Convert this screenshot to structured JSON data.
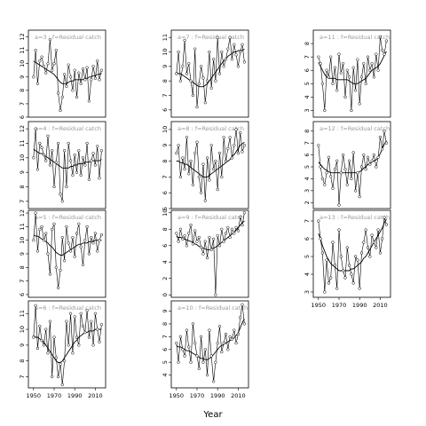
{
  "chart_data": {
    "type": "line",
    "xlabel": "Year",
    "x": [
      1950,
      1952,
      1954,
      1956,
      1958,
      1960,
      1962,
      1964,
      1966,
      1968,
      1970,
      1972,
      1974,
      1976,
      1978,
      1980,
      1982,
      1984,
      1986,
      1988,
      1990,
      1992,
      1994,
      1996,
      1998,
      2000,
      2002,
      2004,
      2006,
      2008,
      2010,
      2012,
      2014,
      2016
    ],
    "xticks": [
      1950,
      1970,
      1990,
      2010
    ],
    "xlim": [
      1945,
      2020
    ],
    "panels": [
      {
        "strip": "a=3 : f=Residual catch",
        "ylim": [
          6,
          12.5
        ],
        "yticks": [
          6,
          7,
          8,
          9,
          10,
          11,
          12
        ],
        "values": [
          9.0,
          11.0,
          8.5,
          10.2,
          10.5,
          9.8,
          9.3,
          10.0,
          11.8,
          9.5,
          10.0,
          11.0,
          7.8,
          6.5,
          7.5,
          9.2,
          8.3,
          9.9,
          9.0,
          8.0,
          9.5,
          7.5,
          9.3,
          8.5,
          9.6,
          8.8,
          9.7,
          7.2,
          8.8,
          9.8,
          8.9,
          10.2,
          8.8,
          9.5
        ],
        "smooth": [
          10.2,
          10.1,
          10.0,
          9.9,
          9.8,
          9.7,
          9.6,
          9.5,
          9.4,
          9.3,
          9.2,
          9.0,
          8.8,
          8.6,
          8.5,
          8.5,
          8.5,
          8.6,
          8.7,
          8.7,
          8.8,
          8.8,
          8.8,
          8.8,
          8.8,
          8.9,
          8.9,
          9.0,
          9.0,
          9.1,
          9.1,
          9.2,
          9.2,
          9.3
        ]
      },
      {
        "strip": "a=4 : f=Residual catch",
        "ylim": [
          6.5,
          12.5
        ],
        "yticks": [
          7,
          8,
          9,
          10,
          11,
          12
        ],
        "values": [
          10.0,
          12.0,
          9.2,
          11.0,
          10.7,
          10.2,
          9.8,
          11.5,
          9.5,
          10.5,
          8.0,
          9.7,
          11.0,
          7.5,
          7.0,
          10.5,
          8.0,
          11.0,
          9.8,
          8.8,
          10.2,
          9.0,
          10.5,
          8.8,
          10.0,
          9.5,
          11.0,
          8.5,
          9.8,
          10.3,
          9.5,
          10.8,
          8.6,
          10.5
        ],
        "smooth": [
          10.6,
          10.5,
          10.4,
          10.3,
          10.3,
          10.2,
          10.1,
          10.0,
          9.9,
          9.8,
          9.7,
          9.6,
          9.5,
          9.4,
          9.3,
          9.3,
          9.3,
          9.3,
          9.4,
          9.4,
          9.5,
          9.5,
          9.6,
          9.6,
          9.6,
          9.7,
          9.7,
          9.7,
          9.8,
          9.8,
          9.8,
          9.8,
          9.8,
          9.9
        ]
      },
      {
        "strip": "a=5 : f=Residual catch",
        "ylim": [
          5.8,
          12.2
        ],
        "yticks": [
          6,
          7,
          8,
          9,
          10,
          11,
          12
        ],
        "values": [
          10.0,
          12.0,
          9.2,
          10.8,
          11.0,
          10.0,
          10.5,
          9.0,
          7.5,
          10.8,
          11.2,
          8.0,
          6.5,
          7.8,
          10.2,
          8.5,
          11.0,
          9.8,
          9.2,
          10.2,
          8.8,
          10.5,
          11.2,
          9.5,
          8.2,
          10.0,
          11.0,
          9.0,
          10.2,
          9.8,
          10.5,
          9.2,
          10.0,
          10.4
        ],
        "smooth": [
          10.4,
          10.3,
          10.3,
          10.2,
          10.1,
          10.0,
          9.9,
          9.8,
          9.6,
          9.5,
          9.3,
          9.1,
          9.0,
          8.9,
          8.9,
          9.0,
          9.1,
          9.2,
          9.3,
          9.4,
          9.5,
          9.6,
          9.7,
          9.7,
          9.8,
          9.8,
          9.8,
          9.9,
          9.9,
          9.9,
          10.0,
          10.0,
          10.0,
          10.0
        ]
      },
      {
        "strip": "a=6 : f=Residual catch",
        "ylim": [
          6.3,
          11.8
        ],
        "yticks": [
          7,
          8,
          9,
          10,
          11
        ],
        "values": [
          9.5,
          11.5,
          8.8,
          10.2,
          9.3,
          9.0,
          10.0,
          8.5,
          10.5,
          7.0,
          9.5,
          8.2,
          7.0,
          7.8,
          6.5,
          8.0,
          10.5,
          9.0,
          11.0,
          8.5,
          10.8,
          9.5,
          9.0,
          11.0,
          10.2,
          9.8,
          11.2,
          9.5,
          10.5,
          9.0,
          11.0,
          10.0,
          9.2,
          10.3
        ],
        "smooth": [
          9.6,
          9.5,
          9.5,
          9.4,
          9.3,
          9.2,
          9.0,
          8.8,
          8.6,
          8.4,
          8.2,
          8.0,
          7.9,
          7.9,
          8.0,
          8.2,
          8.4,
          8.6,
          8.8,
          9.0,
          9.2,
          9.3,
          9.5,
          9.6,
          9.7,
          9.8,
          9.8,
          9.9,
          9.9,
          9.9,
          10.0,
          10.0,
          10.0,
          10.0
        ]
      },
      {
        "strip": "a=7 : f=Residual catch",
        "ylim": [
          5.5,
          11.5
        ],
        "yticks": [
          6,
          7,
          8,
          9,
          10,
          11
        ],
        "values": [
          8.5,
          10.0,
          8.0,
          9.0,
          10.8,
          8.5,
          9.2,
          8.0,
          7.0,
          10.2,
          6.2,
          7.8,
          9.0,
          8.2,
          6.5,
          8.0,
          10.0,
          7.5,
          9.5,
          8.0,
          11.0,
          8.5,
          10.0,
          9.0,
          9.5,
          10.2,
          11.0,
          9.5,
          10.5,
          9.8,
          9.0,
          10.0,
          10.5,
          9.3
        ],
        "smooth": [
          8.6,
          8.5,
          8.5,
          8.4,
          8.3,
          8.2,
          8.1,
          8.0,
          7.9,
          7.8,
          7.7,
          7.6,
          7.6,
          7.6,
          7.7,
          7.8,
          8.0,
          8.2,
          8.4,
          8.6,
          8.8,
          9.0,
          9.2,
          9.4,
          9.5,
          9.7,
          9.8,
          9.9,
          10.0,
          10.0,
          10.1,
          10.1,
          10.1,
          10.2
        ]
      },
      {
        "strip": "a=8 : f=Residual catch",
        "ylim": [
          5,
          10.5
        ],
        "yticks": [
          5,
          6,
          7,
          8,
          9,
          10
        ],
        "values": [
          8.5,
          9.0,
          7.0,
          8.2,
          7.5,
          9.5,
          7.2,
          8.0,
          6.5,
          8.5,
          9.2,
          7.0,
          6.0,
          7.8,
          5.5,
          8.2,
          6.8,
          9.0,
          7.5,
          8.0,
          6.2,
          8.5,
          7.0,
          9.5,
          8.0,
          8.8,
          9.5,
          8.2,
          9.0,
          10.0,
          8.5,
          9.8,
          8.6,
          9.0
        ],
        "smooth": [
          8.0,
          8.0,
          7.9,
          7.9,
          7.8,
          7.8,
          7.7,
          7.6,
          7.5,
          7.4,
          7.3,
          7.2,
          7.1,
          7.0,
          7.0,
          7.0,
          7.1,
          7.2,
          7.3,
          7.4,
          7.5,
          7.6,
          7.7,
          7.8,
          7.9,
          8.0,
          8.1,
          8.3,
          8.4,
          8.6,
          8.8,
          9.0,
          9.1,
          9.2
        ]
      },
      {
        "strip": "a=9 : f=Residual catch",
        "ylim": [
          -0.3,
          10.3
        ],
        "yticks": [
          0,
          2,
          4,
          6,
          8,
          10
        ],
        "values": [
          7.5,
          6.5,
          8.0,
          6.8,
          7.2,
          6.0,
          7.5,
          8.5,
          6.2,
          7.8,
          6.5,
          7.0,
          5.8,
          5.0,
          6.5,
          4.5,
          7.0,
          5.5,
          6.8,
          0.0,
          7.2,
          6.0,
          8.0,
          6.5,
          7.5,
          8.2,
          7.0,
          8.0,
          7.5,
          8.2,
          7.8,
          9.5,
          8.5,
          10.0
        ],
        "smooth": [
          7.1,
          7.0,
          7.0,
          6.9,
          6.8,
          6.7,
          6.6,
          6.5,
          6.4,
          6.2,
          6.1,
          5.9,
          5.8,
          5.7,
          5.6,
          5.5,
          5.5,
          5.6,
          5.7,
          5.8,
          6.0,
          6.2,
          6.4,
          6.6,
          6.8,
          7.0,
          7.2,
          7.4,
          7.6,
          7.9,
          8.2,
          8.5,
          8.8,
          9.0
        ]
      },
      {
        "strip": "a=10 : f=Residual catch",
        "ylim": [
          3,
          9.8
        ],
        "yticks": [
          4,
          5,
          6,
          7,
          8,
          9
        ],
        "values": [
          6.5,
          5.0,
          7.0,
          6.0,
          5.5,
          7.5,
          6.2,
          5.0,
          8.0,
          6.5,
          5.5,
          4.5,
          7.0,
          5.0,
          6.0,
          4.0,
          7.5,
          5.5,
          3.5,
          5.0,
          6.5,
          7.8,
          5.8,
          6.5,
          7.2,
          6.0,
          7.0,
          6.8,
          7.5,
          6.5,
          7.2,
          8.5,
          9.5,
          8.0
        ],
        "smooth": [
          6.3,
          6.2,
          6.2,
          6.1,
          6.0,
          5.9,
          5.9,
          5.8,
          5.7,
          5.6,
          5.5,
          5.4,
          5.3,
          5.3,
          5.2,
          5.2,
          5.3,
          5.4,
          5.6,
          5.8,
          6.0,
          6.2,
          6.3,
          6.4,
          6.5,
          6.6,
          6.7,
          6.8,
          6.9,
          7.1,
          7.3,
          7.7,
          8.1,
          8.4
        ]
      },
      {
        "strip": "a=11 : f=Residual catch",
        "ylim": [
          2.5,
          9
        ],
        "yticks": [
          3,
          4,
          5,
          6,
          7,
          8
        ],
        "values": [
          7.0,
          6.5,
          5.0,
          3.0,
          6.0,
          5.5,
          7.0,
          5.0,
          6.2,
          4.5,
          7.2,
          5.8,
          6.5,
          4.0,
          6.0,
          5.5,
          3.0,
          6.2,
          4.5,
          6.8,
          3.5,
          5.5,
          6.5,
          5.0,
          7.0,
          6.0,
          6.5,
          5.5,
          7.2,
          6.0,
          8.5,
          7.5,
          7.2,
          8.2
        ],
        "smooth": [
          6.6,
          6.3,
          6.0,
          5.7,
          5.5,
          5.4,
          5.4,
          5.4,
          5.4,
          5.3,
          5.3,
          5.3,
          5.3,
          5.3,
          5.3,
          5.2,
          5.1,
          5.0,
          5.0,
          5.0,
          5.1,
          5.2,
          5.3,
          5.4,
          5.6,
          5.8,
          6.0,
          6.1,
          6.2,
          6.3,
          6.5,
          6.8,
          7.1,
          7.4
        ]
      },
      {
        "strip": "a=12 : f=Residual catch",
        "ylim": [
          1.5,
          8.8
        ],
        "yticks": [
          2,
          3,
          4,
          5,
          6,
          7,
          8
        ],
        "values": [
          6.8,
          5.0,
          4.0,
          3.5,
          4.5,
          5.8,
          4.2,
          3.2,
          4.8,
          5.5,
          1.8,
          4.5,
          6.0,
          4.8,
          3.5,
          5.5,
          4.0,
          6.2,
          3.0,
          4.5,
          2.5,
          5.0,
          6.0,
          4.8,
          5.8,
          5.2,
          5.5,
          6.0,
          5.0,
          5.8,
          7.5,
          6.5,
          8.0,
          7.0
        ],
        "smooth": [
          5.4,
          5.2,
          5.0,
          4.8,
          4.7,
          4.6,
          4.5,
          4.5,
          4.5,
          4.5,
          4.5,
          4.5,
          4.5,
          4.5,
          4.5,
          4.5,
          4.5,
          4.5,
          4.5,
          4.5,
          4.6,
          4.7,
          4.9,
          5.0,
          5.2,
          5.3,
          5.4,
          5.5,
          5.6,
          5.8,
          6.1,
          6.5,
          6.9,
          7.2
        ]
      },
      {
        "strip": "a=13 : f=Residual catch",
        "ylim": [
          2.7,
          7.6
        ],
        "yticks": [
          3,
          4,
          5,
          6,
          7
        ],
        "values": [
          7.0,
          6.0,
          5.2,
          3.0,
          4.8,
          3.5,
          3.8,
          5.8,
          4.5,
          3.2,
          6.5,
          5.0,
          4.2,
          3.8,
          5.5,
          4.5,
          4.0,
          3.5,
          5.0,
          4.8,
          3.2,
          5.2,
          5.8,
          6.5,
          5.5,
          5.0,
          6.2,
          5.8,
          5.5,
          6.5,
          5.2,
          6.0,
          7.2,
          6.8
        ],
        "smooth": [
          6.3,
          6.0,
          5.6,
          5.3,
          5.0,
          4.8,
          4.6,
          4.5,
          4.4,
          4.3,
          4.2,
          4.2,
          4.2,
          4.2,
          4.2,
          4.2,
          4.3,
          4.3,
          4.4,
          4.5,
          4.6,
          4.7,
          4.9,
          5.0,
          5.2,
          5.4,
          5.6,
          5.8,
          6.0,
          6.2,
          6.4,
          6.6,
          6.9,
          7.1
        ]
      }
    ]
  }
}
